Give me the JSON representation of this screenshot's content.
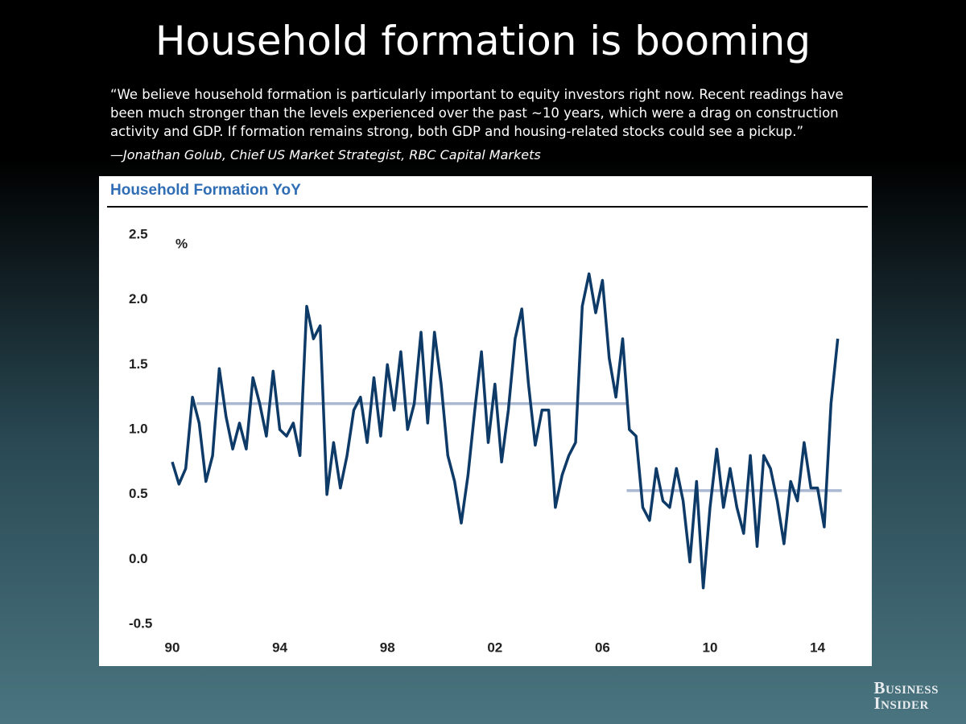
{
  "slide_title": "Household formation is booming",
  "quote": [
    "“We believe household formation is particularly important to equity investors right now.  Recent readings have",
    "been much stronger than the levels experienced over the past ~10 years, which were a drag on construction",
    "activity and GDP.  If formation remains strong, both GDP and housing-related stocks could see a pickup.”"
  ],
  "attribution": "—Jonathan Golub, Chief US Market Strategist, RBC Capital Markets",
  "logo": [
    "Business",
    "Insider"
  ],
  "chart_data": {
    "type": "line",
    "title": "Household Formation YoY",
    "y_unit": "%",
    "x": [
      1990,
      1990.25,
      1990.5,
      1990.75,
      1991,
      1991.25,
      1991.5,
      1991.75,
      1992,
      1992.25,
      1992.5,
      1992.75,
      1993,
      1993.25,
      1993.5,
      1993.75,
      1994,
      1994.25,
      1994.5,
      1994.75,
      1995,
      1995.25,
      1995.5,
      1995.75,
      1996,
      1996.25,
      1996.5,
      1996.75,
      1997,
      1997.25,
      1997.5,
      1997.75,
      1998,
      1998.25,
      1998.5,
      1998.75,
      1999,
      1999.25,
      1999.5,
      1999.75,
      2000,
      2000.25,
      2000.5,
      2000.75,
      2001,
      2001.25,
      2001.5,
      2001.75,
      2002,
      2002.25,
      2002.5,
      2002.75,
      2003,
      2003.25,
      2003.5,
      2003.75,
      2004,
      2004.25,
      2004.5,
      2004.75,
      2005,
      2005.25,
      2005.5,
      2005.75,
      2006,
      2006.25,
      2006.5,
      2006.75,
      2007,
      2007.25,
      2007.5,
      2007.75,
      2008,
      2008.25,
      2008.5,
      2008.75,
      2009,
      2009.25,
      2009.5,
      2009.75,
      2010,
      2010.25,
      2010.5,
      2010.75,
      2011,
      2011.25,
      2011.5,
      2011.75,
      2012,
      2012.25,
      2012.5,
      2012.75,
      2013,
      2013.25,
      2013.5,
      2013.75,
      2014,
      2014.25,
      2014.5,
      2014.75
    ],
    "series": [
      {
        "color": "#0e3a68",
        "values": [
          0.75,
          0.58,
          0.7,
          1.25,
          1.05,
          0.6,
          0.8,
          1.47,
          1.1,
          0.85,
          1.05,
          0.85,
          1.4,
          1.2,
          0.95,
          1.45,
          1.0,
          0.95,
          1.05,
          0.8,
          1.95,
          1.7,
          1.8,
          0.5,
          0.9,
          0.55,
          0.8,
          1.15,
          1.25,
          0.9,
          1.4,
          0.95,
          1.5,
          1.15,
          1.6,
          1.0,
          1.2,
          1.75,
          1.05,
          1.75,
          1.35,
          0.8,
          0.6,
          0.28,
          0.65,
          1.15,
          1.6,
          0.9,
          1.35,
          0.75,
          1.15,
          1.7,
          1.93,
          1.35,
          0.88,
          1.15,
          1.15,
          0.4,
          0.65,
          0.8,
          0.9,
          1.95,
          2.2,
          1.9,
          2.15,
          1.55,
          1.25,
          1.7,
          1.0,
          0.95,
          0.4,
          0.3,
          0.7,
          0.45,
          0.4,
          0.7,
          0.45,
          -0.02,
          0.6,
          -0.22,
          0.4,
          0.85,
          0.4,
          0.7,
          0.4,
          0.2,
          0.8,
          0.1,
          0.8,
          0.7,
          0.45,
          0.12,
          0.6,
          0.45,
          0.9,
          0.55,
          0.55,
          0.25,
          1.2,
          1.7
        ]
      }
    ],
    "reference_lines": [
      {
        "y": 1.2,
        "x": [
          1990.9,
          2006.9
        ],
        "color": "#aab8d2"
      },
      {
        "y": 0.53,
        "x": [
          2006.9,
          2014.9
        ],
        "color": "#aab8d2"
      }
    ],
    "xlim": [
      1990,
      2015
    ],
    "xticks": [
      {
        "value": 1990,
        "label": "90"
      },
      {
        "value": 1994,
        "label": "94"
      },
      {
        "value": 1998,
        "label": "98"
      },
      {
        "value": 2002,
        "label": "02"
      },
      {
        "value": 2006,
        "label": "06"
      },
      {
        "value": 2010,
        "label": "10"
      },
      {
        "value": 2014,
        "label": "14"
      }
    ],
    "ylim": [
      -0.5,
      2.5
    ],
    "yticks": [
      -0.5,
      {
        "value": 0,
        "label": "0.0"
      },
      0.5,
      {
        "value": 1,
        "label": "1.0"
      },
      1.5,
      {
        "value": 2,
        "label": "2.0"
      },
      2.5
    ],
    "grid": false
  }
}
